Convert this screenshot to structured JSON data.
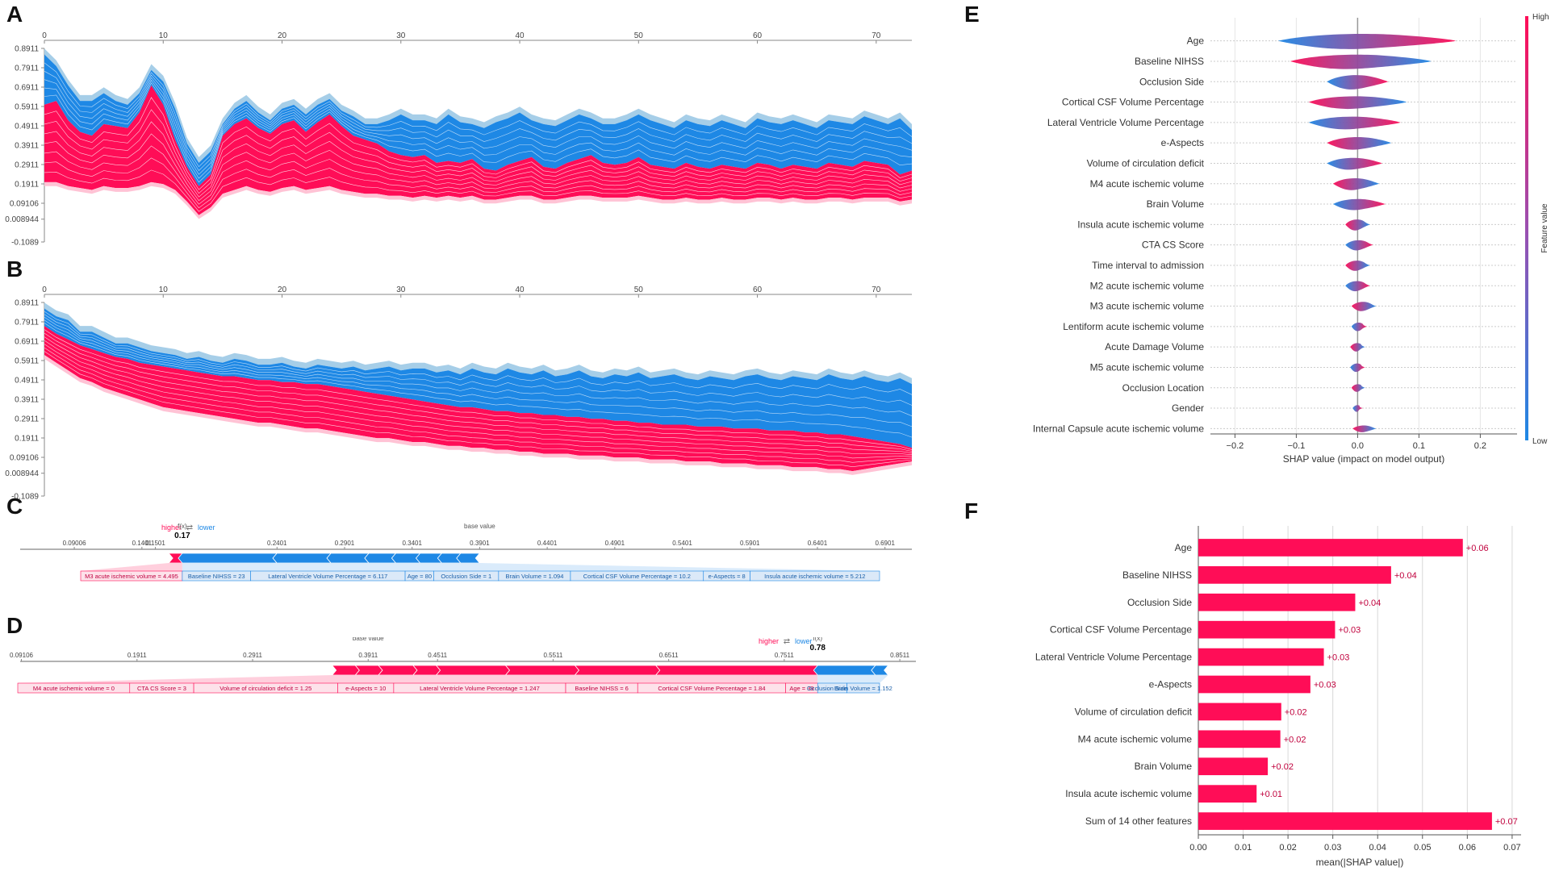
{
  "colors": {
    "red": "#ff0d57",
    "blue": "#1e88e5",
    "light_blue": "#a6cee8",
    "pale_red": "#ffc3d5",
    "pale_blue": "#d1e6fa"
  },
  "panel_letters": [
    "A",
    "B",
    "C",
    "D",
    "E",
    "F"
  ],
  "chart_data": [
    {
      "id": "A",
      "type": "area",
      "title": "",
      "x_ticks": [
        0,
        10,
        20,
        30,
        40,
        50,
        60,
        70
      ],
      "xlim": [
        0,
        73
      ],
      "y_ticks": [
        "0.8911",
        "0.7911",
        "0.6911",
        "0.5911",
        "0.4911",
        "0.3911",
        "0.2911",
        "0.1911",
        "0.09106",
        "0.008944",
        "-0.1089"
      ],
      "ylim": [
        -0.1089,
        0.8911
      ],
      "series": [
        {
          "name": "higher (red)",
          "values": [
            0.6,
            0.62,
            0.52,
            0.46,
            0.44,
            0.5,
            0.49,
            0.48,
            0.56,
            0.7,
            0.6,
            0.42,
            0.28,
            0.18,
            0.24,
            0.44,
            0.5,
            0.53,
            0.48,
            0.45,
            0.5,
            0.52,
            0.46,
            0.51,
            0.55,
            0.49,
            0.44,
            0.42,
            0.4,
            0.36,
            0.34,
            0.33,
            0.34,
            0.3,
            0.31,
            0.3,
            0.32,
            0.27,
            0.26,
            0.29,
            0.31,
            0.33,
            0.28,
            0.27,
            0.3,
            0.32,
            0.34,
            0.3,
            0.29,
            0.3,
            0.33,
            0.29,
            0.28,
            0.27,
            0.3,
            0.28,
            0.27,
            0.29,
            0.28,
            0.27,
            0.3,
            0.29,
            0.27,
            0.29,
            0.28,
            0.27,
            0.3,
            0.29,
            0.28,
            0.31,
            0.3,
            0.29,
            0.24,
            0.26
          ]
        },
        {
          "name": "lower (blue)",
          "values": [
            0.86,
            0.8,
            0.7,
            0.62,
            0.62,
            0.66,
            0.62,
            0.6,
            0.66,
            0.78,
            0.72,
            0.58,
            0.4,
            0.3,
            0.36,
            0.5,
            0.58,
            0.62,
            0.56,
            0.52,
            0.58,
            0.6,
            0.55,
            0.6,
            0.63,
            0.57,
            0.54,
            0.5,
            0.5,
            0.52,
            0.55,
            0.52,
            0.52,
            0.5,
            0.55,
            0.51,
            0.5,
            0.48,
            0.51,
            0.53,
            0.56,
            0.52,
            0.5,
            0.49,
            0.52,
            0.55,
            0.53,
            0.5,
            0.5,
            0.52,
            0.55,
            0.52,
            0.5,
            0.48,
            0.52,
            0.5,
            0.49,
            0.52,
            0.5,
            0.48,
            0.53,
            0.51,
            0.5,
            0.52,
            0.5,
            0.48,
            0.52,
            0.51,
            0.5,
            0.54,
            0.52,
            0.5,
            0.53,
            0.47
          ]
        }
      ],
      "base": [
        0.2,
        0.2,
        0.18,
        0.17,
        0.16,
        0.18,
        0.17,
        0.17,
        0.18,
        0.2,
        0.19,
        0.16,
        0.1,
        0.03,
        0.07,
        0.14,
        0.16,
        0.18,
        0.16,
        0.15,
        0.17,
        0.18,
        0.16,
        0.17,
        0.18,
        0.16,
        0.15,
        0.14,
        0.14,
        0.13,
        0.13,
        0.12,
        0.13,
        0.12,
        0.13,
        0.12,
        0.13,
        0.11,
        0.11,
        0.12,
        0.13,
        0.13,
        0.11,
        0.11,
        0.12,
        0.13,
        0.13,
        0.12,
        0.12,
        0.12,
        0.13,
        0.12,
        0.11,
        0.11,
        0.12,
        0.11,
        0.11,
        0.12,
        0.11,
        0.11,
        0.12,
        0.12,
        0.11,
        0.12,
        0.11,
        0.11,
        0.12,
        0.12,
        0.11,
        0.12,
        0.12,
        0.12,
        0.1,
        0.11
      ]
    },
    {
      "id": "B",
      "type": "area",
      "title": "",
      "x_ticks": [
        0,
        10,
        20,
        30,
        40,
        50,
        60,
        70
      ],
      "xlim": [
        0,
        73
      ],
      "y_ticks": [
        "0.8911",
        "0.7911",
        "0.6911",
        "0.5911",
        "0.4911",
        "0.3911",
        "0.2911",
        "0.1911",
        "0.09106",
        "0.008944",
        "-0.1089"
      ],
      "ylim": [
        -0.1089,
        0.8911
      ],
      "series": [
        {
          "name": "higher (red)",
          "values": [
            0.77,
            0.73,
            0.7,
            0.67,
            0.65,
            0.63,
            0.61,
            0.6,
            0.58,
            0.57,
            0.56,
            0.55,
            0.54,
            0.53,
            0.52,
            0.51,
            0.51,
            0.5,
            0.49,
            0.49,
            0.48,
            0.48,
            0.47,
            0.47,
            0.46,
            0.45,
            0.44,
            0.43,
            0.42,
            0.41,
            0.4,
            0.39,
            0.38,
            0.37,
            0.36,
            0.35,
            0.35,
            0.34,
            0.33,
            0.33,
            0.32,
            0.32,
            0.31,
            0.31,
            0.3,
            0.3,
            0.29,
            0.29,
            0.28,
            0.28,
            0.27,
            0.27,
            0.26,
            0.26,
            0.26,
            0.25,
            0.25,
            0.25,
            0.24,
            0.24,
            0.24,
            0.23,
            0.23,
            0.23,
            0.22,
            0.22,
            0.21,
            0.21,
            0.2,
            0.19,
            0.18,
            0.17,
            0.16,
            0.14
          ]
        },
        {
          "name": "lower (blue)",
          "values": [
            0.86,
            0.82,
            0.8,
            0.74,
            0.74,
            0.71,
            0.68,
            0.68,
            0.66,
            0.64,
            0.63,
            0.62,
            0.6,
            0.61,
            0.59,
            0.58,
            0.6,
            0.59,
            0.57,
            0.57,
            0.58,
            0.56,
            0.55,
            0.57,
            0.56,
            0.55,
            0.56,
            0.54,
            0.55,
            0.56,
            0.54,
            0.55,
            0.55,
            0.53,
            0.54,
            0.52,
            0.55,
            0.53,
            0.52,
            0.55,
            0.53,
            0.52,
            0.54,
            0.51,
            0.52,
            0.54,
            0.51,
            0.5,
            0.52,
            0.51,
            0.53,
            0.5,
            0.51,
            0.52,
            0.5,
            0.49,
            0.51,
            0.5,
            0.49,
            0.51,
            0.52,
            0.5,
            0.49,
            0.51,
            0.5,
            0.49,
            0.52,
            0.5,
            0.49,
            0.51,
            0.49,
            0.48,
            0.5,
            0.47
          ]
        }
      ],
      "base": [
        0.62,
        0.58,
        0.54,
        0.5,
        0.48,
        0.45,
        0.43,
        0.41,
        0.39,
        0.37,
        0.35,
        0.34,
        0.33,
        0.32,
        0.31,
        0.3,
        0.29,
        0.28,
        0.27,
        0.27,
        0.26,
        0.25,
        0.24,
        0.24,
        0.23,
        0.22,
        0.21,
        0.2,
        0.19,
        0.19,
        0.18,
        0.17,
        0.17,
        0.16,
        0.15,
        0.15,
        0.14,
        0.14,
        0.13,
        0.13,
        0.12,
        0.12,
        0.11,
        0.11,
        0.11,
        0.1,
        0.1,
        0.1,
        0.09,
        0.09,
        0.09,
        0.08,
        0.08,
        0.08,
        0.07,
        0.07,
        0.07,
        0.06,
        0.06,
        0.06,
        0.05,
        0.05,
        0.05,
        0.04,
        0.04,
        0.04,
        0.03,
        0.03,
        0.02,
        0.03,
        0.04,
        0.05,
        0.06,
        0.07
      ]
    },
    {
      "id": "C",
      "type": "force",
      "legend_higher": "higher",
      "legend_arrows": "⇄",
      "legend_lower": "lower",
      "fx_label": "f(x)",
      "fx_value": 0.17,
      "fx_text": "0.17",
      "base_label": "base value",
      "base_value": 0.3901,
      "axis_ticks": [
        0.09006,
        0.1401,
        0.1501,
        0.2401,
        0.2901,
        0.3401,
        0.3901,
        0.4401,
        0.4901,
        0.5401,
        0.5901,
        0.6401,
        0.6901
      ],
      "axis_tick_labels": [
        "0.09006",
        "0.1401",
        "0.1501",
        "0.2401",
        "0.2901",
        "0.3401",
        "0.3901",
        "0.4401",
        "0.4901",
        "0.5401",
        "0.5901",
        "0.6401",
        "0.6901"
      ],
      "xlim": [
        0.05,
        0.71
      ],
      "positive": [
        {
          "label": "M3 acute ischemic volume = 4.495",
          "value": 0.01
        }
      ],
      "negative": [
        {
          "label": "Baseline NIHSS = 23",
          "value": 0.07
        },
        {
          "label": "Lateral Ventricle Volume Percentage = 6.117",
          "value": 0.04
        },
        {
          "label": "Age = 80",
          "value": 0.028
        },
        {
          "label": "Occlusion Side = 1",
          "value": 0.02
        },
        {
          "label": "Brain Volume = 1.094",
          "value": 0.018
        },
        {
          "label": "Cortical CSF Volume Percentage = 10.2",
          "value": 0.016
        },
        {
          "label": "e-Aspects = 8",
          "value": 0.014
        },
        {
          "label": "Insula acute ischemic volume = 5.212",
          "value": 0.014
        }
      ]
    },
    {
      "id": "D",
      "type": "force",
      "legend_higher": "higher",
      "legend_arrows": "⇄",
      "legend_lower": "lower",
      "fx_label": "f(x)",
      "fx_value": 0.78,
      "fx_text": "0.78",
      "base_label": "base value",
      "base_value": 0.3911,
      "axis_ticks": [
        0.09106,
        0.1911,
        0.2911,
        0.3911,
        0.4511,
        0.5511,
        0.6511,
        0.7511,
        0.8511
      ],
      "axis_tick_labels": [
        "0.09106",
        "0.1911",
        "0.2911",
        "0.3911",
        "0.4511",
        "0.5511",
        "0.6511",
        "0.7511",
        "0.8511"
      ],
      "xlim": [
        0.09,
        0.865
      ],
      "positive": [
        {
          "label": "M4 acute ischemic volume = 0",
          "value": 0.02
        },
        {
          "label": "CTA CS Score = 3",
          "value": 0.02
        },
        {
          "label": "Volume of circulation deficit = 1.25",
          "value": 0.03
        },
        {
          "label": "e-Aspects = 10",
          "value": 0.02
        },
        {
          "label": "Lateral Ventricle Volume Percentage = 1.247",
          "value": 0.06
        },
        {
          "label": "Baseline NIHSS = 6",
          "value": 0.06
        },
        {
          "label": "Cortical CSF Volume Percentage = 1.84",
          "value": 0.07
        },
        {
          "label": "Age = 39",
          "value": 0.14
        }
      ],
      "negative": [
        {
          "label": "Occlusion Side = 1",
          "value": 0.05
        },
        {
          "label": "Brain Volume = 1.152",
          "value": 0.011
        }
      ]
    },
    {
      "id": "E",
      "type": "violin",
      "xlabel": "SHAP value (impact on model output)",
      "x_ticks": [
        -0.2,
        -0.1,
        0.0,
        0.1,
        0.2
      ],
      "x_tick_labels": [
        "−0.2",
        "−0.1",
        "0.0",
        "0.1",
        "0.2"
      ],
      "xlim": [
        -0.24,
        0.26
      ],
      "colorbar_label": "Feature value",
      "colorbar_high": "High",
      "colorbar_low": "Low",
      "features": [
        {
          "name": "Age",
          "min": -0.13,
          "max": 0.16,
          "width": 0.9
        },
        {
          "name": "Baseline NIHSS",
          "min": -0.11,
          "max": 0.12,
          "width": 0.85
        },
        {
          "name": "Occlusion Side",
          "min": -0.05,
          "max": 0.05,
          "width": 0.85
        },
        {
          "name": "Cortical CSF Volume Percentage",
          "min": -0.08,
          "max": 0.08,
          "width": 0.75
        },
        {
          "name": "Lateral Ventricle Volume Percentage",
          "min": -0.08,
          "max": 0.07,
          "width": 0.75
        },
        {
          "name": "e-Aspects",
          "min": -0.05,
          "max": 0.055,
          "width": 0.75
        },
        {
          "name": "Volume of circulation deficit",
          "min": -0.05,
          "max": 0.04,
          "width": 0.7
        },
        {
          "name": "M4 acute ischemic volume",
          "min": -0.04,
          "max": 0.035,
          "width": 0.7
        },
        {
          "name": "Brain Volume",
          "min": -0.04,
          "max": 0.045,
          "width": 0.65
        },
        {
          "name": "Insula acute ischemic volume",
          "min": -0.02,
          "max": 0.02,
          "width": 0.65
        },
        {
          "name": "CTA CS Score",
          "min": -0.02,
          "max": 0.025,
          "width": 0.6
        },
        {
          "name": "Time interval to admission",
          "min": -0.02,
          "max": 0.02,
          "width": 0.6
        },
        {
          "name": "M2 acute ischemic volume",
          "min": -0.02,
          "max": 0.02,
          "width": 0.6
        },
        {
          "name": "M3 acute ischemic volume",
          "min": -0.01,
          "max": 0.03,
          "width": 0.55
        },
        {
          "name": "Lentiform acute ischemic volume",
          "min": -0.01,
          "max": 0.015,
          "width": 0.5
        },
        {
          "name": "Acute Damage Volume",
          "min": -0.012,
          "max": 0.012,
          "width": 0.5
        },
        {
          "name": "M5 acute ischemic volume",
          "min": -0.012,
          "max": 0.012,
          "width": 0.5
        },
        {
          "name": "Occlusion Location",
          "min": -0.01,
          "max": 0.012,
          "width": 0.45
        },
        {
          "name": "Gender",
          "min": -0.008,
          "max": 0.008,
          "width": 0.4
        },
        {
          "name": "Internal Capsule acute ischemic volume",
          "min": -0.008,
          "max": 0.03,
          "width": 0.4
        }
      ]
    },
    {
      "id": "F",
      "type": "bar",
      "xlabel": "mean(|SHAP value|)",
      "x_ticks": [
        0.0,
        0.01,
        0.02,
        0.03,
        0.04,
        0.05,
        0.06,
        0.07
      ],
      "x_tick_labels": [
        "0.00",
        "0.01",
        "0.02",
        "0.03",
        "0.04",
        "0.05",
        "0.06",
        "0.07"
      ],
      "xlim": [
        0,
        0.072
      ],
      "categories": [
        "Age",
        "Baseline NIHSS",
        "Occlusion Side",
        "Cortical CSF Volume Percentage",
        "Lateral Ventricle Volume Percentage",
        "e-Aspects",
        "Volume of circulation deficit",
        "M4 acute ischemic volume",
        "Brain Volume",
        "Insula acute ischemic volume",
        "Sum of 14 other features"
      ],
      "values": [
        0.059,
        0.043,
        0.035,
        0.0305,
        0.028,
        0.025,
        0.0185,
        0.0183,
        0.0155,
        0.013,
        0.0655
      ],
      "value_labels": [
        "+0.06",
        "+0.04",
        "+0.04",
        "+0.03",
        "+0.03",
        "+0.03",
        "+0.02",
        "+0.02",
        "+0.02",
        "+0.01",
        "+0.07"
      ]
    }
  ]
}
